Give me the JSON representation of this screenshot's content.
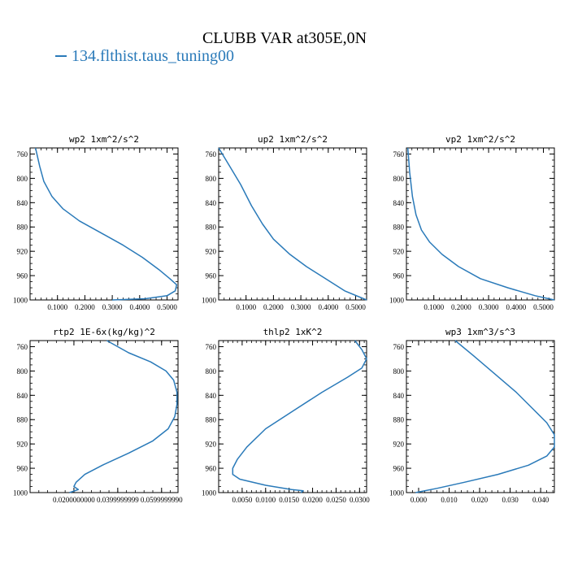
{
  "title": "CLUBB VAR at305E,0N",
  "legend": [
    {
      "name": "134.flthist.taus_tuning00",
      "color": "#2a7ab9"
    }
  ],
  "chart_data": [
    {
      "type": "line",
      "title": "wp2   1xm^2/s^2",
      "ylim": [
        1000,
        750
      ],
      "yticks": [
        760,
        800,
        840,
        880,
        920,
        960,
        1000
      ],
      "ytick_labels": [
        "760",
        "800",
        "840",
        "880",
        "920",
        "960",
        "1000"
      ],
      "xlim": [
        0.0,
        0.54
      ],
      "xticks": [
        0.1,
        0.2,
        0.3,
        0.4,
        0.5
      ],
      "xtick_labels": [
        "0.1000",
        "0.2000",
        "0.3000",
        "0.4000",
        "0.5000"
      ],
      "series": [
        {
          "color": "#2a7ab9",
          "x": [
            0.02,
            0.035,
            0.05,
            0.08,
            0.12,
            0.18,
            0.26,
            0.34,
            0.41,
            0.47,
            0.51,
            0.535,
            0.53,
            0.5,
            0.42,
            0.3
          ],
          "y": [
            750,
            780,
            805,
            830,
            850,
            870,
            890,
            910,
            930,
            950,
            965,
            975,
            985,
            993,
            998,
            1000
          ]
        }
      ]
    },
    {
      "type": "line",
      "title": "up2   1xm^2/s^2",
      "ylim": [
        1000,
        750
      ],
      "yticks": [
        760,
        800,
        840,
        880,
        920,
        960,
        1000
      ],
      "ytick_labels": [
        "760",
        "800",
        "840",
        "880",
        "920",
        "960",
        "1000"
      ],
      "xlim": [
        0.0,
        0.54
      ],
      "xticks": [
        0.1,
        0.2,
        0.3,
        0.4,
        0.5
      ],
      "xtick_labels": [
        "0.1000",
        "0.2000",
        "0.3000",
        "0.4000",
        "0.5000"
      ],
      "series": [
        {
          "color": "#2a7ab9",
          "x": [
            0.0,
            0.04,
            0.08,
            0.12,
            0.16,
            0.2,
            0.26,
            0.32,
            0.39,
            0.46,
            0.54
          ],
          "y": [
            750,
            780,
            810,
            845,
            875,
            900,
            925,
            945,
            965,
            985,
            1000
          ]
        }
      ]
    },
    {
      "type": "line",
      "title": "vp2   1xm^2/s^2",
      "ylim": [
        1000,
        750
      ],
      "yticks": [
        760,
        800,
        840,
        880,
        920,
        960,
        1000
      ],
      "ytick_labels": [
        "760",
        "800",
        "840",
        "880",
        "920",
        "960",
        "1000"
      ],
      "xlim": [
        0.0,
        0.54
      ],
      "xticks": [
        0.1,
        0.2,
        0.3,
        0.4,
        0.5
      ],
      "xtick_labels": [
        "0.1000",
        "0.2000",
        "0.3000",
        "0.4000",
        "0.5000"
      ],
      "series": [
        {
          "color": "#2a7ab9",
          "x": [
            0.005,
            0.012,
            0.022,
            0.035,
            0.055,
            0.085,
            0.13,
            0.19,
            0.27,
            0.37,
            0.47,
            0.54
          ],
          "y": [
            750,
            790,
            830,
            860,
            885,
            905,
            925,
            945,
            965,
            980,
            993,
            1000
          ]
        }
      ]
    },
    {
      "type": "line",
      "title": "rtp2   1E-6x(kg/kg)^2",
      "ylim": [
        1000,
        750
      ],
      "yticks": [
        760,
        800,
        840,
        880,
        920,
        960,
        1000
      ],
      "ytick_labels": [
        "760",
        "800",
        "840",
        "880",
        "920",
        "960",
        "1000"
      ],
      "xlim": [
        0.0,
        0.0675
      ],
      "xticks": [
        0.02,
        0.04,
        0.06
      ],
      "xtick_labels": [
        "0.0200000000",
        "0.0399999999",
        "0.0599999990"
      ],
      "series": [
        {
          "color": "#2a7ab9",
          "x": [
            0.035,
            0.045,
            0.055,
            0.062,
            0.0655,
            0.067,
            0.067,
            0.066,
            0.063,
            0.056,
            0.045,
            0.033,
            0.025,
            0.021,
            0.02,
            0.022,
            0.018
          ],
          "y": [
            750,
            770,
            785,
            800,
            815,
            835,
            855,
            875,
            895,
            915,
            935,
            955,
            970,
            983,
            990,
            995,
            1000
          ]
        }
      ]
    },
    {
      "type": "line",
      "title": "thlp2   1xK^2",
      "ylim": [
        1000,
        750
      ],
      "yticks": [
        760,
        800,
        840,
        880,
        920,
        960,
        1000
      ],
      "ytick_labels": [
        "760",
        "800",
        "840",
        "880",
        "920",
        "960",
        "1000"
      ],
      "xlim": [
        0.0,
        0.0315
      ],
      "xticks": [
        0.005,
        0.01,
        0.015,
        0.02,
        0.025,
        0.03
      ],
      "xtick_labels": [
        "0.0050",
        "0.0100",
        "0.0150",
        "0.0200",
        "0.0250",
        "0.0300"
      ],
      "series": [
        {
          "color": "#2a7ab9",
          "x": [
            0.029,
            0.0305,
            0.0315,
            0.0305,
            0.0275,
            0.022,
            0.016,
            0.01,
            0.006,
            0.004,
            0.003,
            0.003,
            0.0045,
            0.01,
            0.0155,
            0.018,
            0.0175
          ],
          "y": [
            750,
            765,
            780,
            795,
            810,
            835,
            865,
            895,
            925,
            945,
            960,
            970,
            978,
            988,
            995,
            997,
            1000
          ]
        }
      ]
    },
    {
      "type": "line",
      "title": "wp3   1xm^3/s^3",
      "ylim": [
        1000,
        750
      ],
      "yticks": [
        760,
        800,
        840,
        880,
        920,
        960,
        1000
      ],
      "ytick_labels": [
        "760",
        "800",
        "840",
        "880",
        "920",
        "960",
        "1000"
      ],
      "xlim": [
        -0.004,
        0.0445
      ],
      "xticks": [
        0.0,
        0.01,
        0.02,
        0.03,
        0.04
      ],
      "xtick_labels": [
        "0.000",
        "0.010",
        "0.020",
        "0.030",
        "0.040"
      ],
      "series": [
        {
          "color": "#2a7ab9",
          "x": [
            0.012,
            0.018,
            0.025,
            0.032,
            0.038,
            0.042,
            0.0445,
            0.0445,
            0.042,
            0.036,
            0.026,
            0.015,
            0.006,
            0.001,
            -0.001
          ],
          "y": [
            750,
            775,
            805,
            835,
            865,
            885,
            905,
            925,
            940,
            955,
            970,
            983,
            993,
            998,
            1000
          ]
        }
      ]
    }
  ]
}
